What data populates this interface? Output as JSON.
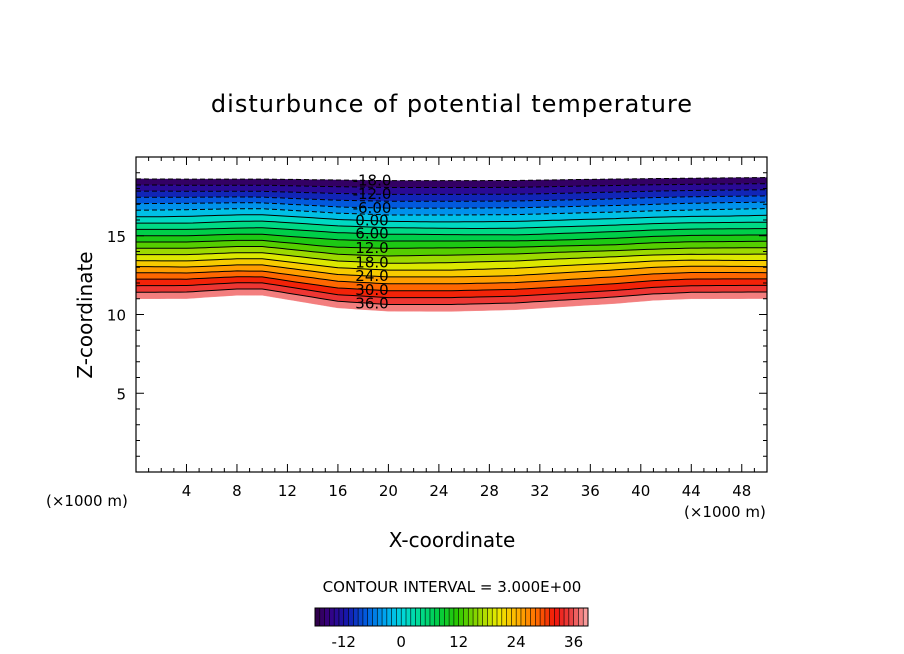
{
  "chart_data": {
    "type": "contour",
    "title": "disturbunce of potential temperature",
    "xlabel": "X-coordinate",
    "ylabel": "Z-coordinate",
    "xunit": "(×1000 m)",
    "yunit": "(×1000 m)",
    "xlim": [
      0,
      50
    ],
    "ylim": [
      0,
      20
    ],
    "xticks": [
      4,
      8,
      12,
      16,
      20,
      24,
      28,
      32,
      36,
      40,
      44,
      48
    ],
    "yticks": [
      5,
      10,
      15
    ],
    "contour_interval_label": "CONTOUR INTERVAL = 3.000E+00",
    "contour_interval": 3,
    "value_range": [
      -18,
      39
    ],
    "negative_contours_dashed": true,
    "contour_labels": [
      {
        "text": "-18.0",
        "value": -18
      },
      {
        "text": "-12.0",
        "value": -12
      },
      {
        "text": "-6.00",
        "value": -6
      },
      {
        "text": "0.00",
        "value": 0
      },
      {
        "text": "6.00",
        "value": 6
      },
      {
        "text": "12.0",
        "value": 12
      },
      {
        "text": "18.0",
        "value": 18
      },
      {
        "text": "24.0",
        "value": 24
      },
      {
        "text": "30.0",
        "value": 30
      },
      {
        "text": "36.0",
        "value": 36
      }
    ],
    "layer_top_z": [
      [
        0,
        18.6
      ],
      [
        10,
        18.6
      ],
      [
        20,
        18.5
      ],
      [
        30,
        18.5
      ],
      [
        40,
        18.6
      ],
      [
        50,
        18.7
      ]
    ],
    "layer_bottom_z": [
      [
        0,
        11.0
      ],
      [
        4,
        11.0
      ],
      [
        8,
        11.2
      ],
      [
        10,
        11.2
      ],
      [
        13,
        10.8
      ],
      [
        16,
        10.4
      ],
      [
        20,
        10.2
      ],
      [
        25,
        10.2
      ],
      [
        30,
        10.3
      ],
      [
        34,
        10.5
      ],
      [
        38,
        10.7
      ],
      [
        41,
        10.9
      ],
      [
        44,
        11.0
      ],
      [
        48,
        11.0
      ],
      [
        50,
        11.0
      ]
    ],
    "colorbar": {
      "ticks": [
        {
          "label": "-12",
          "value": -12
        },
        {
          "label": "0",
          "value": 0
        },
        {
          "label": "12",
          "value": 12
        },
        {
          "label": "24",
          "value": 24
        },
        {
          "label": "36",
          "value": 36
        }
      ]
    }
  }
}
